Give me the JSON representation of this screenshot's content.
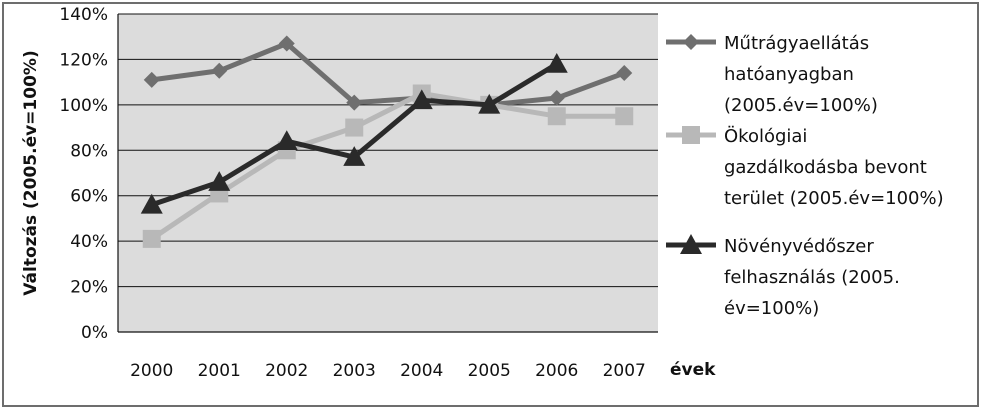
{
  "chart_data": {
    "type": "line",
    "categories": [
      "2000",
      "2001",
      "2002",
      "2003",
      "2004",
      "2005",
      "2006",
      "2007"
    ],
    "xlabel": "évek",
    "ylabel": "Változás (2005.év=100%)",
    "ylim": [
      0,
      140
    ],
    "y_ticks": [
      "0%",
      "20%",
      "40%",
      "60%",
      "80%",
      "100%",
      "120%",
      "140%"
    ],
    "grid": true,
    "legend_position": "right",
    "series": [
      {
        "name": "Műtrágyaellátás hatóanyagban (2005.év=100%)",
        "legend_lines": [
          "Műtrágyaellátás",
          "hatóanyagban",
          "(2005.év=100%)"
        ],
        "marker": "diamond",
        "color": "#6f6f6f",
        "values": [
          111,
          115,
          127,
          101,
          103,
          100,
          103,
          114
        ]
      },
      {
        "name": "Ökológiai gazdálkodásba bevont terület (2005.év=100%)",
        "legend_lines": [
          "Ökológiai",
          "gazdálkodásba bevont",
          "terület (2005.év=100%)"
        ],
        "marker": "square",
        "color": "#b8b8b8",
        "values": [
          41,
          61,
          80,
          90,
          105,
          100,
          95,
          95
        ]
      },
      {
        "name": "Növényvédőszer felhasználás (2005. év=100%)",
        "legend_lines": [
          "Növényvédőszer",
          "felhasználás (2005.",
          "év=100%)"
        ],
        "marker": "triangle",
        "color": "#2a2a2a",
        "values": [
          56,
          66,
          84,
          77,
          102,
          100,
          118,
          null
        ]
      }
    ]
  }
}
